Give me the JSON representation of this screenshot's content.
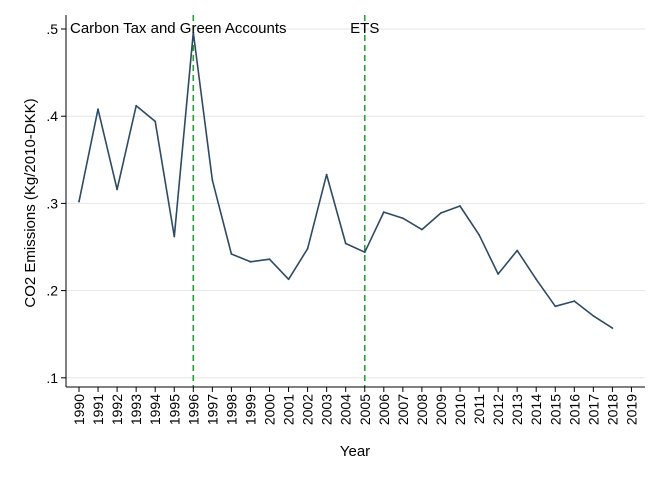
{
  "chart_data": {
    "type": "line",
    "title": "",
    "xlabel": "Year",
    "ylabel": "CO2 Emissions (Kg/2010-DKK)",
    "x_ticks": [
      "1990",
      "1991",
      "1992",
      "1993",
      "1994",
      "1995",
      "1996",
      "1997",
      "1998",
      "1999",
      "2000",
      "2001",
      "2002",
      "2003",
      "2004",
      "2005",
      "2006",
      "2007",
      "2008",
      "2009",
      "2010",
      "2011",
      "2012",
      "2013",
      "2014",
      "2015",
      "2016",
      "2017",
      "2018",
      "2019"
    ],
    "y_ticks": [
      ".1",
      ".2",
      ".3",
      ".4",
      ".5"
    ],
    "xlim": [
      1990,
      2019
    ],
    "ylim": [
      0.1,
      0.5
    ],
    "grid": "horizontal",
    "series": [
      {
        "color": "#2f4b63",
        "x": [
          1990,
          1991,
          1992,
          1993,
          1994,
          1995,
          1996,
          1997,
          1998,
          1999,
          2000,
          2001,
          2002,
          2003,
          2004,
          2005,
          2006,
          2007,
          2008,
          2009,
          2010,
          2011,
          2012,
          2013,
          2014,
          2015,
          2016,
          2017,
          2018
        ],
        "values": [
          0.302,
          0.408,
          0.316,
          0.412,
          0.394,
          0.262,
          0.496,
          0.327,
          0.242,
          0.233,
          0.236,
          0.213,
          0.248,
          0.333,
          0.254,
          0.244,
          0.29,
          0.283,
          0.27,
          0.289,
          0.297,
          0.264,
          0.219,
          0.246,
          0.213,
          0.182,
          0.188,
          0.171,
          0.157
        ]
      }
    ],
    "annotations": [
      {
        "x": 1996,
        "label": "Carbon Tax and Green Accounts",
        "color": "#2e9a3a",
        "style": "dashed"
      },
      {
        "x": 2005,
        "label": "ETS",
        "color": "#2e9a3a",
        "style": "dashed"
      }
    ]
  }
}
